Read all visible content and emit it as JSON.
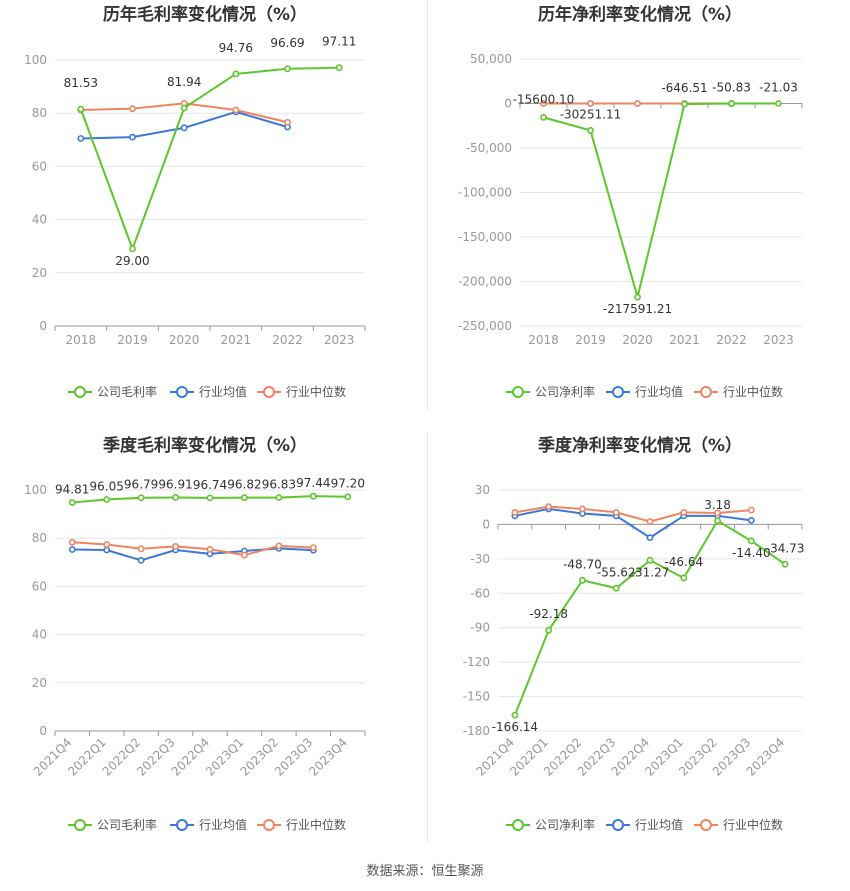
{
  "source_text": "数据来源：恒生聚源",
  "colors": {
    "company": "#5cc72b",
    "industry_avg": "#3a77d9",
    "industry_median": "#f08461",
    "grid": "#e6e6e6",
    "axis_text": "#999999",
    "label_text": "#333333",
    "title_text": "#333333"
  },
  "chart_data": [
    {
      "type": "line",
      "title": "历年毛利率变化情况（%）",
      "categories": [
        "2018",
        "2019",
        "2020",
        "2021",
        "2022",
        "2023"
      ],
      "ylim": [
        0,
        100
      ],
      "yticks": [
        0,
        20,
        40,
        60,
        80,
        100
      ],
      "ytick_labels": [
        "0",
        "20",
        "40",
        "60",
        "80",
        "100"
      ],
      "series": [
        {
          "name": "公司毛利率",
          "role": "company",
          "values": [
            81.53,
            29.0,
            81.94,
            94.76,
            96.69,
            97.11
          ],
          "labels": [
            "81.53",
            "29.00",
            "81.94",
            "94.76",
            "96.69",
            "97.11"
          ]
        },
        {
          "name": "行业均值",
          "role": "industry_avg",
          "values": [
            70.5,
            71.0,
            74.5,
            80.5,
            74.8,
            null
          ]
        },
        {
          "name": "行业中位数",
          "role": "industry_median",
          "values": [
            81.2,
            81.7,
            83.7,
            81.2,
            76.6,
            null
          ]
        }
      ],
      "legend": [
        "公司毛利率",
        "行业均值",
        "行业中位数"
      ],
      "legend_position": "bottom"
    },
    {
      "type": "line",
      "title": "历年净利率变化情况（%）",
      "categories": [
        "2018",
        "2019",
        "2020",
        "2021",
        "2022",
        "2023"
      ],
      "ylim": [
        -250000,
        50000
      ],
      "yticks": [
        -250000,
        -200000,
        -150000,
        -100000,
        -50000,
        0,
        50000
      ],
      "ytick_labels": [
        "-250,000",
        "-200,000",
        "-150,000",
        "-100,000",
        "-50,000",
        "0",
        "50,000"
      ],
      "series": [
        {
          "name": "公司净利率",
          "role": "company",
          "values": [
            -15600.1,
            -30251.11,
            -217591.21,
            -646.51,
            -50.83,
            -21.03
          ],
          "labels": [
            "-15600.10",
            "-30251.11",
            "-217591.21",
            "-646.51",
            "-50.83",
            "-21.03"
          ]
        },
        {
          "name": "行业均值",
          "role": "industry_avg",
          "values": [
            5,
            6,
            8,
            10,
            9,
            null
          ]
        },
        {
          "name": "行业中位数",
          "role": "industry_median",
          "values": [
            10,
            11,
            12,
            12,
            11,
            null
          ]
        }
      ],
      "legend": [
        "公司净利率",
        "行业均值",
        "行业中位数"
      ],
      "legend_position": "bottom"
    },
    {
      "type": "line",
      "title": "季度毛利率变化情况（%）",
      "categories": [
        "2021Q4",
        "2022Q1",
        "2022Q2",
        "2022Q3",
        "2022Q4",
        "2023Q1",
        "2023Q2",
        "2023Q3",
        "2023Q4"
      ],
      "ylim": [
        0,
        100
      ],
      "yticks": [
        0,
        20,
        40,
        60,
        80,
        100
      ],
      "ytick_labels": [
        "0",
        "20",
        "40",
        "60",
        "80",
        "100"
      ],
      "series": [
        {
          "name": "公司毛利率",
          "role": "company",
          "values": [
            94.81,
            96.05,
            96.79,
            96.91,
            96.74,
            96.82,
            96.83,
            97.44,
            97.2
          ],
          "labels": [
            "94.81",
            "96.05",
            "96.79",
            "96.91",
            "96.74",
            "96.82",
            "96.83",
            "97.44",
            "97.20"
          ]
        },
        {
          "name": "行业均值",
          "role": "industry_avg",
          "values": [
            75.3,
            75.1,
            70.8,
            75.1,
            73.5,
            74.7,
            75.8,
            75.0,
            null
          ]
        },
        {
          "name": "行业中位数",
          "role": "industry_median",
          "values": [
            78.3,
            77.4,
            75.6,
            76.6,
            75.4,
            73.0,
            76.8,
            76.1,
            null
          ]
        }
      ],
      "legend": [
        "公司毛利率",
        "行业均值",
        "行业中位数"
      ],
      "legend_position": "bottom"
    },
    {
      "type": "line",
      "title": "季度净利率变化情况（%）",
      "categories": [
        "2021Q4",
        "2022Q1",
        "2022Q2",
        "2022Q3",
        "2022Q4",
        "2023Q1",
        "2023Q2",
        "2023Q3",
        "2023Q4"
      ],
      "ylim": [
        -180,
        30
      ],
      "yticks": [
        -180,
        -150,
        -120,
        -90,
        -60,
        -30,
        0,
        30
      ],
      "ytick_labels": [
        "-180",
        "-150",
        "-120",
        "-90",
        "-60",
        "-30",
        "0",
        "30"
      ],
      "series": [
        {
          "name": "公司净利率",
          "role": "company",
          "values": [
            -166.14,
            -92.18,
            -48.7,
            -55.62,
            -31.27,
            -46.64,
            3.18,
            -14.4,
            -34.73
          ],
          "labels": [
            "-166.14",
            "-92.18",
            "-48.70",
            "-55.62",
            "-31.27",
            "-46.64",
            "3.18",
            "-14.40",
            "-34.73"
          ]
        },
        {
          "name": "行业均值",
          "role": "industry_avg",
          "values": [
            7.5,
            13.5,
            9.5,
            7.5,
            -11.5,
            7.5,
            7.5,
            3.5,
            null
          ]
        },
        {
          "name": "行业中位数",
          "role": "industry_median",
          "values": [
            10.5,
            15.5,
            13.5,
            10.5,
            2.5,
            10.5,
            10.0,
            12.5,
            null
          ]
        }
      ],
      "legend": [
        "公司净利率",
        "行业均值",
        "行业中位数"
      ],
      "legend_position": "bottom"
    }
  ]
}
